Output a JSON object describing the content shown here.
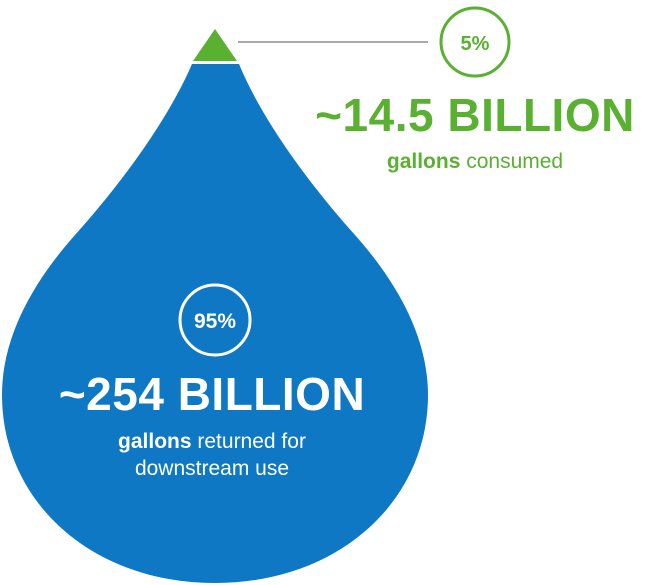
{
  "colors": {
    "drop_blue": "#0e78c4",
    "green": "#5ab031",
    "connector_gray": "#aaaaaa",
    "white": "#ffffff"
  },
  "consumed": {
    "percent": "5%",
    "amount": "~14.5 BILLION",
    "unit_bold": "gallons",
    "description": " consumed"
  },
  "returned": {
    "percent": "95%",
    "amount": "~254 BILLION",
    "unit_bold": "gallons",
    "description": " returned for downstream use"
  }
}
